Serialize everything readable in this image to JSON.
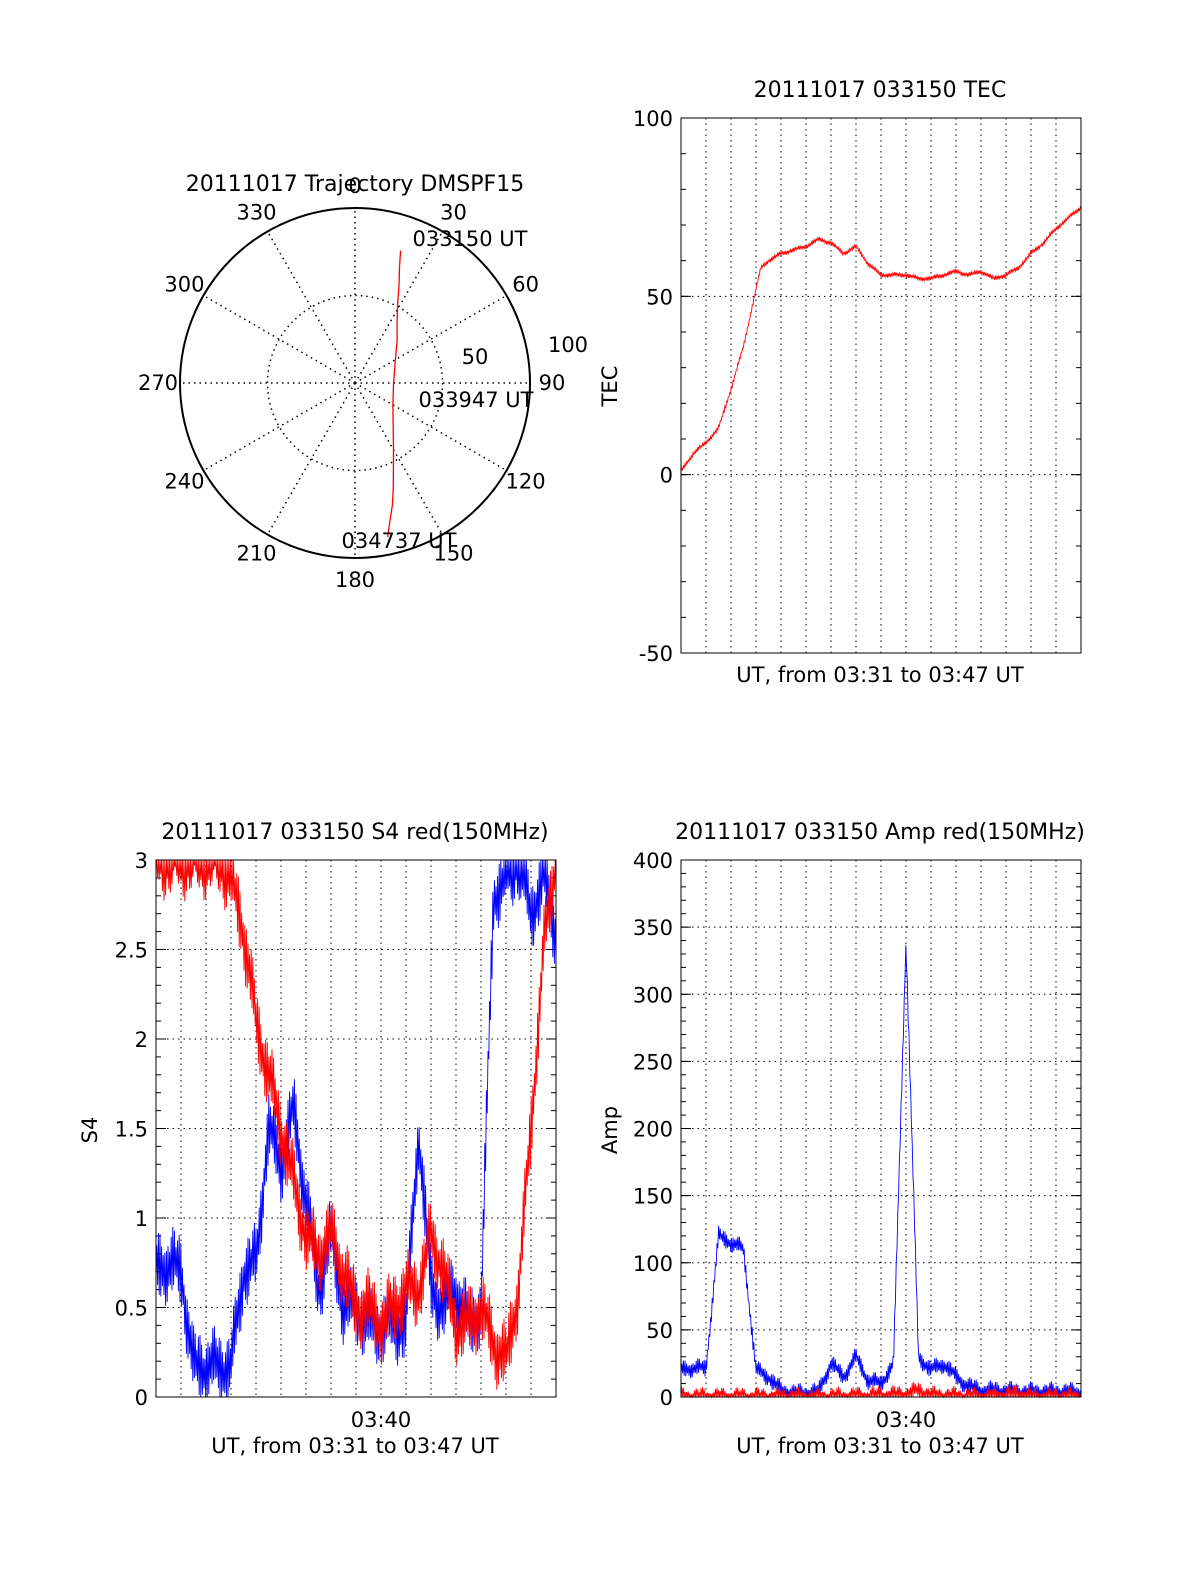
{
  "colors": {
    "red": "#ff0000",
    "blue": "#0000ff",
    "axis": "#000000",
    "grid": "#000000"
  },
  "chart_data": [
    {
      "id": "trajectory",
      "type": "polar",
      "title": "20111017 Trajectory DMSPF15",
      "angle_labels": [
        "0",
        "30",
        "60",
        "90",
        "120",
        "150",
        "180",
        "210",
        "240",
        "270",
        "300",
        "330"
      ],
      "angle_values": [
        0,
        30,
        60,
        90,
        120,
        150,
        180,
        210,
        240,
        270,
        300,
        330
      ],
      "radial_labels": [
        "50",
        "100"
      ],
      "radial_values": [
        50,
        100
      ],
      "rlim": [
        0,
        100
      ],
      "annotations": [
        "033150 UT",
        "033947 UT",
        "034737 UT"
      ],
      "track": {
        "color": "red",
        "azimuth_deg": [
          19,
          21,
          24,
          28,
          34,
          45,
          62,
          92,
          120,
          140,
          150,
          156,
          160,
          163,
          166,
          168
        ],
        "zenith": [
          80,
          71,
          62,
          52,
          43,
          34,
          26,
          22,
          25,
          34,
          44,
          54,
          64,
          73,
          82,
          90
        ]
      }
    },
    {
      "id": "tec",
      "type": "line",
      "title": "20111017 033150 TEC",
      "xlabel": "UT, from 03:31 to 03:47 UT",
      "ylabel": "TEC",
      "xlim": [
        0,
        16
      ],
      "ylim": [
        -50,
        100
      ],
      "yticks": [
        "100",
        "50",
        "0",
        "-50"
      ],
      "ytick_values": [
        100,
        50,
        0,
        -50
      ],
      "grid": true,
      "series": [
        {
          "color": "red",
          "x": [
            0,
            0.5,
            1.0,
            1.5,
            2.0,
            2.5,
            3.0,
            3.2,
            3.5,
            4.0,
            4.5,
            5.0,
            5.5,
            6.0,
            6.5,
            7.0,
            7.5,
            8.0,
            8.5,
            9.0,
            9.5,
            10.0,
            10.5,
            11.0,
            11.5,
            12.0,
            12.5,
            13.0,
            13.5,
            14.0,
            14.5,
            15.0,
            15.5,
            16.0
          ],
          "y": [
            1,
            6,
            9,
            13,
            24,
            36,
            52,
            58,
            60,
            62,
            63,
            64,
            66,
            65,
            62,
            64,
            59,
            56,
            56,
            56,
            55,
            55,
            56,
            57,
            56,
            57,
            55,
            56,
            58,
            62,
            65,
            69,
            72,
            75
          ]
        }
      ]
    },
    {
      "id": "s4",
      "type": "line",
      "title": "20111017 033150 S4 red(150MHz)",
      "xlabel": "UT, from 03:31 to 03:47 UT",
      "ylabel": "S4",
      "xlim": [
        0,
        16
      ],
      "ylim": [
        0,
        3
      ],
      "yticks": [
        "3",
        "2.5",
        "2",
        "1.5",
        "1",
        "0.5",
        "0"
      ],
      "ytick_values": [
        3,
        2.5,
        2,
        1.5,
        1,
        0.5,
        0
      ],
      "xticks": [
        "03:40"
      ],
      "xtick_values": [
        9
      ],
      "grid": true,
      "series": [
        {
          "color": "blue",
          "x": [
            0,
            0.5,
            1.0,
            1.5,
            2.0,
            2.5,
            3.0,
            3.5,
            4.0,
            4.5,
            5.0,
            5.5,
            6.0,
            6.5,
            7.0,
            7.5,
            8.0,
            8.5,
            9.0,
            9.5,
            10.0,
            10.5,
            11.0,
            11.5,
            12.0,
            12.5,
            13.0,
            13.5,
            14.0,
            14.5,
            15.0,
            15.5,
            16.0
          ],
          "y": [
            0.7,
            0.75,
            0.7,
            0.17,
            0.17,
            0.17,
            0.17,
            0.7,
            0.75,
            1.5,
            1.3,
            1.6,
            1.1,
            0.6,
            0.9,
            0.5,
            0.5,
            0.4,
            0.4,
            0.4,
            0.4,
            1.5,
            0.6,
            0.5,
            0.6,
            0.4,
            0.5,
            2.8,
            2.9,
            3.0,
            2.7,
            2.9,
            2.6
          ]
        },
        {
          "color": "red",
          "x": [
            0,
            0.5,
            1.0,
            1.5,
            2.0,
            2.5,
            3.0,
            3.5,
            4.0,
            4.5,
            5.0,
            5.5,
            6.0,
            6.5,
            7.0,
            7.5,
            8.0,
            8.5,
            9.0,
            9.5,
            10.0,
            10.5,
            11.0,
            11.5,
            12.0,
            12.5,
            13.0,
            13.5,
            14.0,
            14.5,
            15.0,
            15.5,
            16.0
          ],
          "y": [
            3.0,
            3.0,
            3.0,
            3.0,
            3.0,
            3.0,
            2.9,
            2.6,
            2.1,
            1.8,
            1.5,
            1.2,
            0.9,
            0.8,
            0.9,
            0.7,
            0.5,
            0.5,
            0.4,
            0.5,
            0.6,
            0.6,
            0.9,
            0.7,
            0.4,
            0.4,
            0.5,
            0.3,
            0.2,
            0.6,
            1.5,
            2.5,
            3.0
          ]
        }
      ]
    },
    {
      "id": "amp",
      "type": "line",
      "title": "20111017 033150 Amp red(150MHz)",
      "xlabel": "UT, from 03:31 to 03:47 UT",
      "ylabel": "Amp",
      "xlim": [
        0,
        16
      ],
      "ylim": [
        0,
        400
      ],
      "yticks": [
        "400",
        "350",
        "300",
        "250",
        "200",
        "150",
        "100",
        "50",
        "0"
      ],
      "ytick_values": [
        400,
        350,
        300,
        250,
        200,
        150,
        100,
        50,
        0
      ],
      "xticks": [
        "03:40"
      ],
      "xtick_values": [
        9
      ],
      "grid": true,
      "series": [
        {
          "color": "blue",
          "x": [
            0,
            0.5,
            1.0,
            1.5,
            2.0,
            2.5,
            3.0,
            3.5,
            4.0,
            4.5,
            5.0,
            5.5,
            6.0,
            6.5,
            7.0,
            7.5,
            8.0,
            8.5,
            9.0,
            9.5,
            10.0,
            10.5,
            11.0,
            11.5,
            12.0,
            12.5,
            13.0,
            13.5,
            14.0,
            14.5,
            15.0,
            15.5,
            16.0
          ],
          "y": [
            20,
            22,
            21,
            120,
            115,
            110,
            20,
            15,
            5,
            3,
            3,
            4,
            25,
            15,
            30,
            12,
            10,
            25,
            340,
            30,
            20,
            25,
            15,
            8,
            5,
            5,
            5,
            4,
            4,
            4,
            4,
            4,
            3
          ]
        },
        {
          "color": "red",
          "x": [
            0,
            2,
            4,
            6,
            8,
            9,
            9.5,
            10,
            12,
            13.5,
            14,
            16
          ],
          "y": [
            0,
            0,
            0,
            0,
            1,
            2,
            5,
            1,
            0,
            2,
            0,
            0
          ]
        }
      ]
    }
  ]
}
